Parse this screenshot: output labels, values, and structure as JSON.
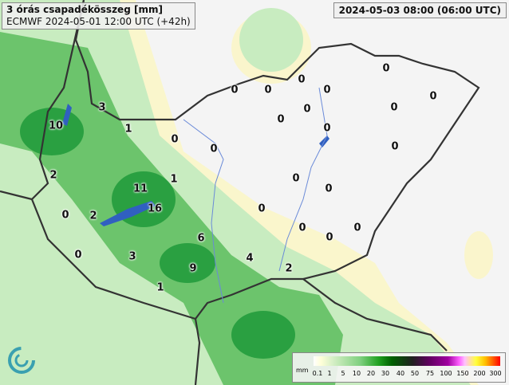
{
  "title": {
    "line1": "3 órás csapadékösszeg [mm]",
    "line2": "ECMWF 2024-05-01 12:00 UTC (+42h)"
  },
  "valid_time": "2024-05-03 08:00 (06:00 UTC)",
  "legend": {
    "unit": "mm",
    "ticks": [
      "0.1",
      "1",
      "5",
      "10",
      "20",
      "30",
      "40",
      "50",
      "75",
      "100",
      "150",
      "200",
      "300"
    ]
  },
  "precip_labels": [
    "3",
    "10",
    "1",
    "2",
    "1",
    "11",
    "16",
    "2",
    "0",
    "6",
    "3",
    "0",
    "4",
    "2",
    "9",
    "1",
    "0",
    "0",
    "0",
    "0",
    "0",
    "0",
    "0",
    "0",
    "0",
    "0",
    "0",
    "0",
    "0",
    "0",
    "0",
    "0",
    "0",
    "0",
    "0"
  ],
  "colors": {
    "light": "#c8ecc0",
    "mid": "#6cc46c",
    "dark": "#1f9a3a",
    "border": "#333333",
    "river": "#6a8ad8",
    "lake": "#3060c0",
    "drizzle": "#fbf6c8"
  }
}
